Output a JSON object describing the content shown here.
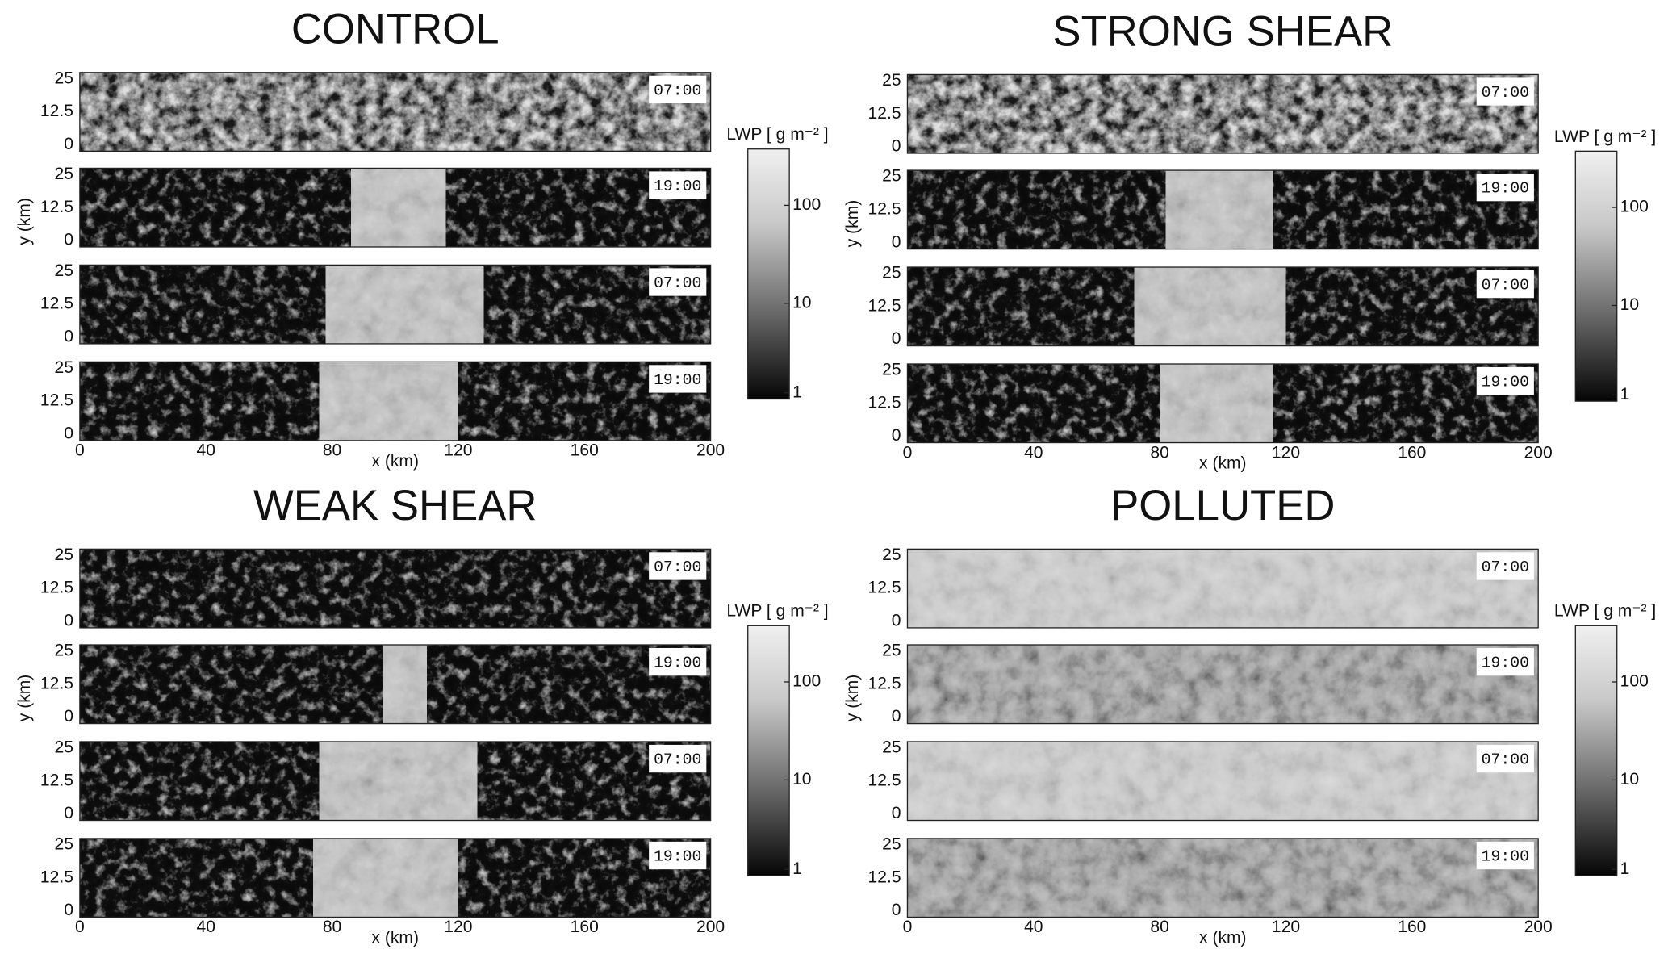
{
  "panels": [
    {
      "title": "CONTROL",
      "times": [
        "07:00",
        "19:00",
        "07:00",
        "19:00"
      ],
      "y_ticks": [
        "25",
        "12.5",
        "0"
      ],
      "y_label": "y (km)",
      "x_ticks": [
        "0",
        "40",
        "80",
        "120",
        "160",
        "200"
      ],
      "x_label": "x (km)",
      "colorbar": {
        "label": "LWP [ g m⁻² ]",
        "ticks": [
          "100",
          "10",
          "1"
        ]
      }
    },
    {
      "title": "STRONG SHEAR",
      "times": [
        "07:00",
        "19:00",
        "07:00",
        "19:00"
      ],
      "y_ticks": [
        "25",
        "12.5",
        "0"
      ],
      "y_label": "y (km)",
      "x_ticks": [
        "0",
        "40",
        "80",
        "120",
        "160",
        "200"
      ],
      "x_label": "x (km)",
      "colorbar": {
        "label": "LWP [ g m⁻² ]",
        "ticks": [
          "100",
          "10",
          "1"
        ]
      }
    },
    {
      "title": "WEAK SHEAR",
      "times": [
        "07:00",
        "19:00",
        "07:00",
        "19:00"
      ],
      "y_ticks": [
        "25",
        "12.5",
        "0"
      ],
      "y_label": "y (km)",
      "x_ticks": [
        "0",
        "40",
        "80",
        "120",
        "160",
        "200"
      ],
      "x_label": "x (km)",
      "colorbar": {
        "label": "LWP [ g m⁻² ]",
        "ticks": [
          "100",
          "10",
          "1"
        ]
      }
    },
    {
      "title": "POLLUTED",
      "times": [
        "07:00",
        "19:00",
        "07:00",
        "19:00"
      ],
      "y_ticks": [
        "25",
        "12.5",
        "0"
      ],
      "y_label": "y (km)",
      "x_ticks": [
        "0",
        "40",
        "80",
        "120",
        "160",
        "200"
      ],
      "x_label": "x (km)",
      "colorbar": {
        "label": "LWP [ g m⁻² ]",
        "ticks": [
          "100",
          "10",
          "1"
        ]
      }
    }
  ]
}
